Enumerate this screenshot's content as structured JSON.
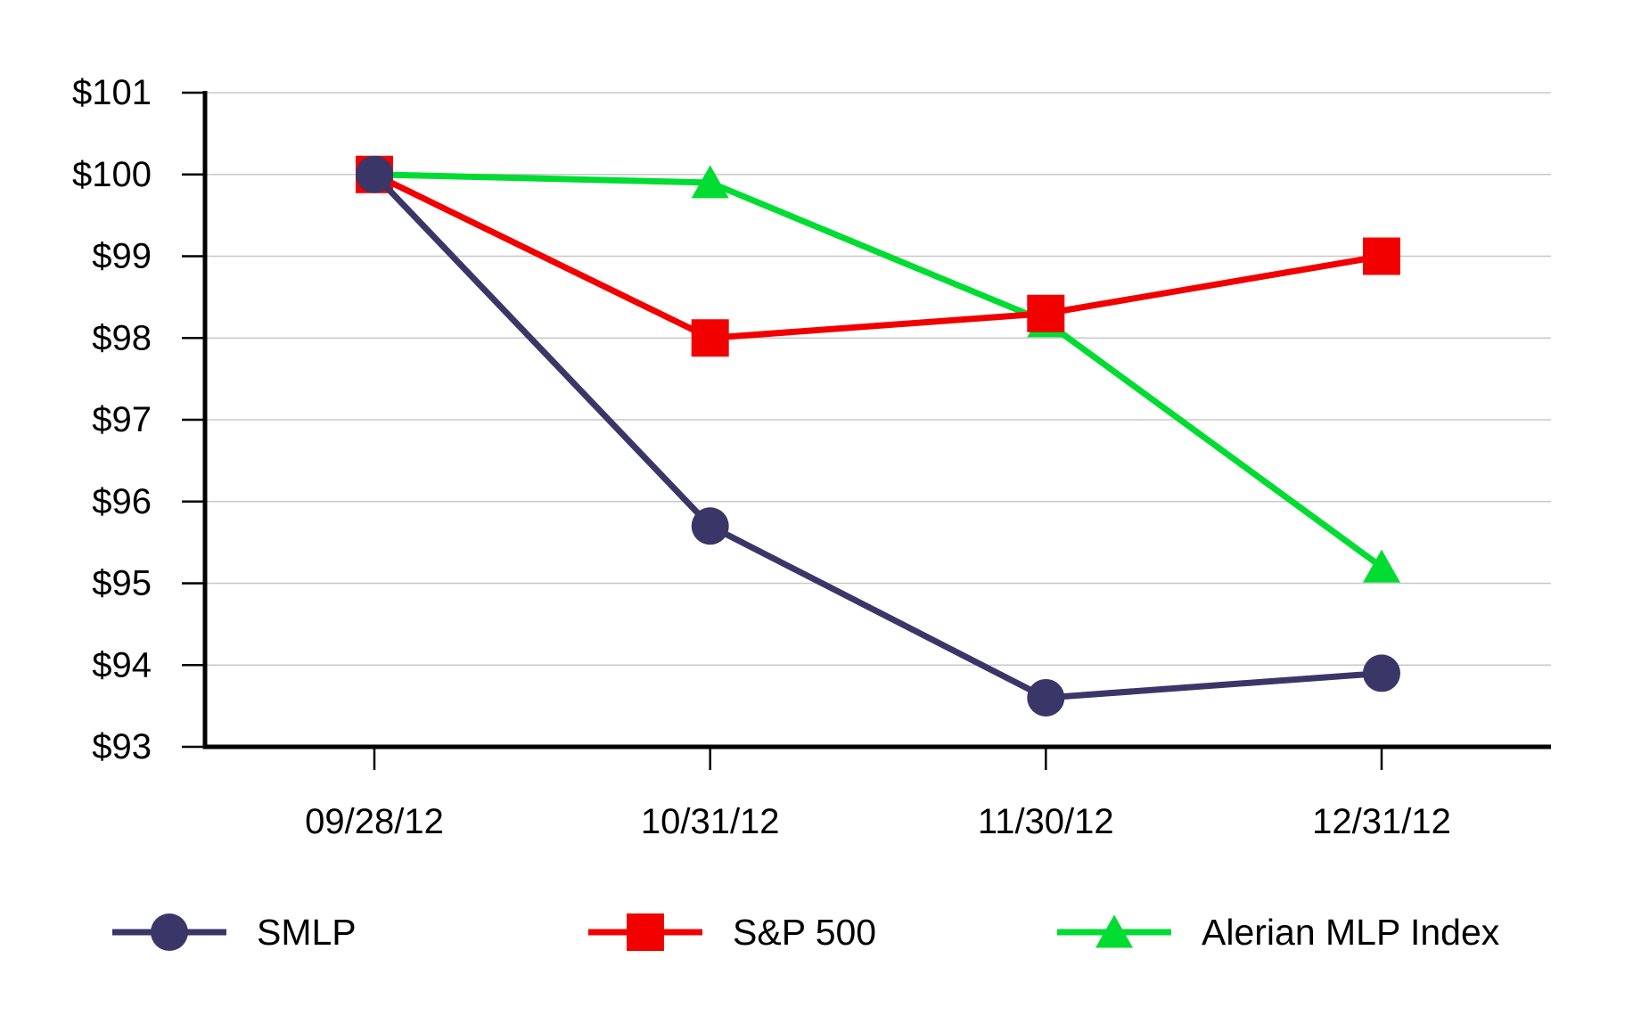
{
  "chart_data": {
    "type": "line",
    "title": "",
    "xlabel": "",
    "ylabel": "",
    "categories": [
      "09/28/12",
      "10/31/12",
      "11/30/12",
      "12/31/12"
    ],
    "series": [
      {
        "name": "SMLP",
        "color": "#3A3768",
        "marker": "circle",
        "values": [
          100.0,
          95.7,
          93.6,
          93.9
        ]
      },
      {
        "name": "S&P 500",
        "color": "#F20000",
        "marker": "square",
        "values": [
          100.0,
          98.0,
          98.3,
          99.0
        ]
      },
      {
        "name": "Alerian MLP Index",
        "color": "#00DC32",
        "marker": "triangle",
        "values": [
          100.0,
          99.9,
          98.2,
          95.2
        ]
      }
    ],
    "ylim": [
      93,
      101
    ],
    "ytick_step": 1,
    "ytick_prefix": "$",
    "ytick_labels": [
      "$93",
      "$94",
      "$95",
      "$96",
      "$97",
      "$98",
      "$99",
      "$100",
      "$101"
    ],
    "grid": true,
    "gridlines_at": [
      94,
      95,
      96,
      97,
      98,
      99,
      100,
      101
    ],
    "legend_position": "bottom",
    "legend_entries": [
      "SMLP",
      "S&P 500",
      "Alerian MLP Index"
    ]
  },
  "colors": {
    "background": "#FFFFFF",
    "axis": "#000000",
    "grid": "#C8C8C8",
    "text": "#000000",
    "smlp": "#3A3768",
    "sp500": "#F20000",
    "alerian": "#00DC32"
  }
}
